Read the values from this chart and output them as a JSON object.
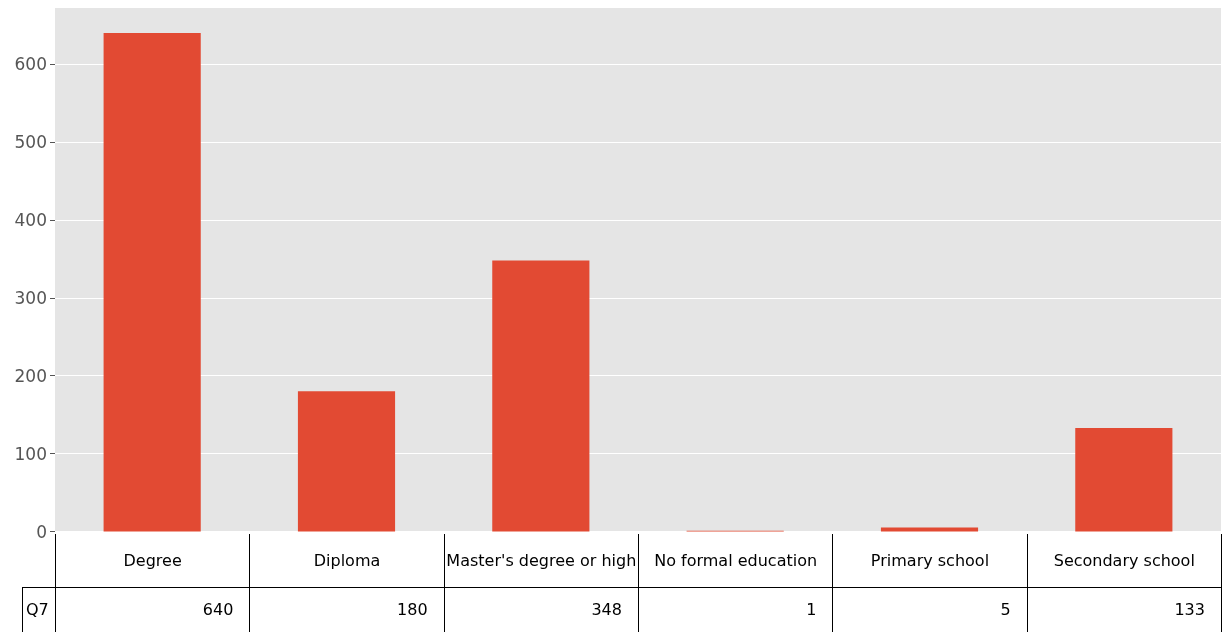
{
  "chart_data": {
    "type": "bar",
    "categories": [
      "Degree",
      "Diploma",
      "Master's degree or high",
      "No formal education",
      "Primary school",
      "Secondary school"
    ],
    "series": [
      {
        "name": "Q7",
        "color": "#e24a33",
        "values": [
          640,
          180,
          348,
          1,
          5,
          133
        ]
      }
    ],
    "ylim": [
      0,
      672
    ],
    "yticks": [
      0,
      100,
      200,
      300,
      400,
      500,
      600
    ],
    "grid": "y",
    "legend": false,
    "data_labels": true
  }
}
